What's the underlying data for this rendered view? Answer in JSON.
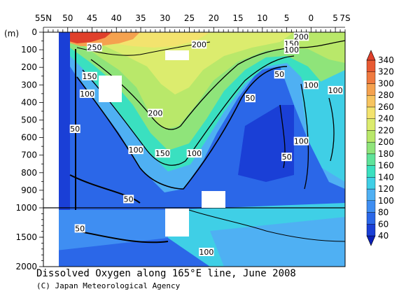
{
  "chart_data": {
    "type": "heatmap",
    "title": "Dissolved Oxygen along 165°E line, June 2008",
    "credit": "(C) Japan Meteorological Agency",
    "y_unit": "(m)",
    "x_axis": {
      "ticks": [
        {
          "lat": 55,
          "label": "55N"
        },
        {
          "lat": 50,
          "label": "50"
        },
        {
          "lat": 45,
          "label": "45"
        },
        {
          "lat": 40,
          "label": "40"
        },
        {
          "lat": 35,
          "label": "35"
        },
        {
          "lat": 30,
          "label": "30"
        },
        {
          "lat": 25,
          "label": "25"
        },
        {
          "lat": 20,
          "label": "20"
        },
        {
          "lat": 15,
          "label": "15"
        },
        {
          "lat": 10,
          "label": "10"
        },
        {
          "lat": 5,
          "label": "5"
        },
        {
          "lat": 0,
          "label": "0"
        },
        {
          "lat": -5,
          "label": "5"
        },
        {
          "lat": -7,
          "label": "7S"
        }
      ]
    },
    "y_axis": {
      "upper_ticks": [
        {
          "depth": 0,
          "label": "0"
        },
        {
          "depth": 100,
          "label": "100"
        },
        {
          "depth": 200,
          "label": "200"
        },
        {
          "depth": 300,
          "label": "300"
        },
        {
          "depth": 400,
          "label": "400"
        },
        {
          "depth": 500,
          "label": "500"
        },
        {
          "depth": 600,
          "label": "600"
        },
        {
          "depth": 700,
          "label": "700"
        },
        {
          "depth": 800,
          "label": "800"
        },
        {
          "depth": 900,
          "label": "900"
        },
        {
          "depth": 1000,
          "label": "1000"
        }
      ],
      "lower_ticks": [
        {
          "depth": 1500,
          "label": "1500"
        },
        {
          "depth": 2000,
          "label": "2000"
        }
      ]
    },
    "colorbar": {
      "levels": [
        40,
        60,
        80,
        100,
        120,
        140,
        160,
        180,
        200,
        220,
        240,
        260,
        280,
        300,
        320,
        340
      ],
      "colors": [
        "#1a3fd6",
        "#2b67e8",
        "#3f8ef2",
        "#4fb0f3",
        "#3fcfe6",
        "#3ae0c0",
        "#5fe39a",
        "#8fe47a",
        "#b9e86a",
        "#dcec6e",
        "#f3e36e",
        "#f7c45f",
        "#f5a24f",
        "#f07a3f",
        "#e85a33",
        "#e0402b"
      ]
    },
    "contour_labels": [
      {
        "text": "250",
        "lat": 44.5,
        "depth": 85
      },
      {
        "text": "200",
        "lat": 23,
        "depth": 70
      },
      {
        "text": "200",
        "lat": 2,
        "depth": 25
      },
      {
        "text": "200",
        "lat": 32,
        "depth": 460
      },
      {
        "text": "150",
        "lat": 45.5,
        "depth": 250
      },
      {
        "text": "150",
        "lat": 4,
        "depth": 65
      },
      {
        "text": "100",
        "lat": 4,
        "depth": 100
      },
      {
        "text": "100",
        "lat": 46,
        "depth": 350
      },
      {
        "text": "100",
        "lat": 0,
        "depth": 300
      },
      {
        "text": "100",
        "lat": -5,
        "depth": 330
      },
      {
        "text": "100",
        "lat": 36,
        "depth": 670
      },
      {
        "text": "150",
        "lat": 30.5,
        "depth": 690
      },
      {
        "text": "100",
        "lat": 24,
        "depth": 690
      },
      {
        "text": "100",
        "lat": 2,
        "depth": 620
      },
      {
        "text": "50",
        "lat": 6.5,
        "depth": 240
      },
      {
        "text": "50",
        "lat": 12.5,
        "depth": 375
      },
      {
        "text": "50",
        "lat": 48.5,
        "depth": 550
      },
      {
        "text": "50",
        "lat": 5,
        "depth": 710
      },
      {
        "text": "50",
        "lat": 37.5,
        "depth": 950
      },
      {
        "text": "50",
        "lat": 47.5,
        "depth": 1350
      },
      {
        "text": "100",
        "lat": 21.5,
        "depth": 1750
      }
    ]
  }
}
